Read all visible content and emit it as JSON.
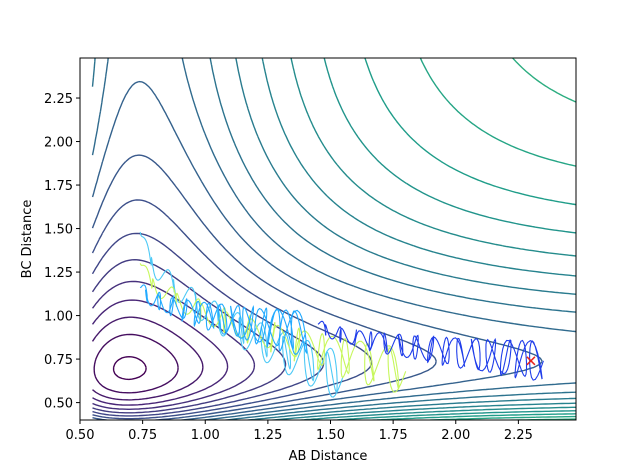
{
  "chart_data": {
    "type": "contour",
    "xlabel": "AB Distance",
    "ylabel": "BC Distance",
    "xlim": [
      0.5,
      2.48
    ],
    "ylim": [
      0.4,
      2.48
    ],
    "xticks": [
      "0.50",
      "0.75",
      "1.00",
      "1.25",
      "1.50",
      "1.75",
      "2.00",
      "2.25"
    ],
    "yticks": [
      "0.50",
      "0.75",
      "1.00",
      "1.25",
      "1.50",
      "1.75",
      "2.00",
      "2.25"
    ],
    "colormap": "viridis",
    "contour_levels": 30,
    "start_marker": {
      "x": 2.3,
      "y": 0.74,
      "symbol": "x",
      "color": "#e8261f"
    },
    "trajectories": [
      {
        "start": [
          0.74,
          1.48
        ],
        "end": [
          1.55,
          0.65
        ],
        "color": "#4dc9f6"
      },
      {
        "start": [
          0.74,
          1.3
        ],
        "end": [
          1.8,
          0.68
        ],
        "color": "#c7f75c"
      },
      {
        "start": [
          0.74,
          1.16
        ],
        "end": [
          1.4,
          0.9
        ],
        "color": "#22aaff"
      },
      {
        "start": [
          1.45,
          0.95
        ],
        "end": [
          2.35,
          0.74
        ],
        "color": "#1f3dea"
      }
    ]
  }
}
